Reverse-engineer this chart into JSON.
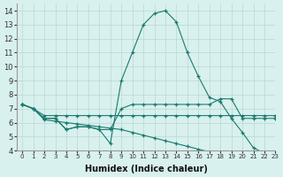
{
  "xlabel": "Humidex (Indice chaleur)",
  "bg_color": "#d8f0ee",
  "grid_color": "#b8d8d4",
  "line_color": "#1a7a6e",
  "xlim": [
    -0.5,
    23
  ],
  "ylim": [
    4,
    14.5
  ],
  "xticks": [
    0,
    1,
    2,
    3,
    4,
    5,
    6,
    7,
    8,
    9,
    10,
    11,
    12,
    13,
    14,
    15,
    16,
    17,
    18,
    19,
    20,
    21,
    22,
    23
  ],
  "yticks": [
    4,
    5,
    6,
    7,
    8,
    9,
    10,
    11,
    12,
    13,
    14
  ],
  "lines": [
    {
      "x": [
        0,
        1,
        2,
        3,
        4,
        5,
        6,
        7,
        8,
        9,
        10,
        11,
        12,
        13,
        14,
        15,
        16,
        17,
        18,
        19,
        20,
        21,
        22,
        23
      ],
      "y": [
        7.3,
        7.0,
        6.3,
        6.3,
        5.5,
        5.7,
        5.7,
        5.5,
        4.5,
        9.0,
        11.0,
        13.0,
        13.8,
        14.0,
        13.2,
        11.0,
        9.3,
        7.8,
        7.5,
        6.3,
        5.3,
        4.2,
        3.8,
        3.7
      ]
    },
    {
      "x": [
        0,
        1,
        2,
        3,
        4,
        5,
        6,
        7,
        8,
        9,
        10,
        11,
        12,
        13,
        14,
        15,
        16,
        17,
        18,
        19,
        20,
        21,
        22,
        23
      ],
      "y": [
        7.3,
        7.0,
        6.5,
        6.5,
        6.5,
        6.5,
        6.5,
        6.5,
        6.5,
        6.5,
        6.5,
        6.5,
        6.5,
        6.5,
        6.5,
        6.5,
        6.5,
        6.5,
        6.5,
        6.5,
        6.5,
        6.5,
        6.5,
        6.5
      ]
    },
    {
      "x": [
        0,
        1,
        2,
        3,
        4,
        5,
        6,
        7,
        8,
        9,
        10,
        11,
        12,
        13,
        14,
        15,
        16,
        17,
        18,
        19,
        20,
        21,
        22,
        23
      ],
      "y": [
        7.3,
        7.0,
        6.3,
        6.3,
        5.5,
        5.7,
        5.7,
        5.5,
        5.5,
        7.0,
        7.3,
        7.3,
        7.3,
        7.3,
        7.3,
        7.3,
        7.3,
        7.3,
        7.7,
        7.7,
        6.3,
        6.3,
        6.3,
        6.3
      ]
    },
    {
      "x": [
        0,
        1,
        2,
        3,
        4,
        5,
        6,
        7,
        8,
        9,
        10,
        11,
        12,
        13,
        14,
        15,
        16,
        17,
        18,
        19,
        20,
        21,
        22,
        23
      ],
      "y": [
        7.3,
        7.0,
        6.2,
        6.1,
        6.0,
        5.9,
        5.8,
        5.7,
        5.6,
        5.5,
        5.3,
        5.1,
        4.9,
        4.7,
        4.5,
        4.3,
        4.1,
        3.9,
        3.8,
        3.7,
        3.6,
        3.5,
        3.4,
        3.7
      ]
    }
  ]
}
